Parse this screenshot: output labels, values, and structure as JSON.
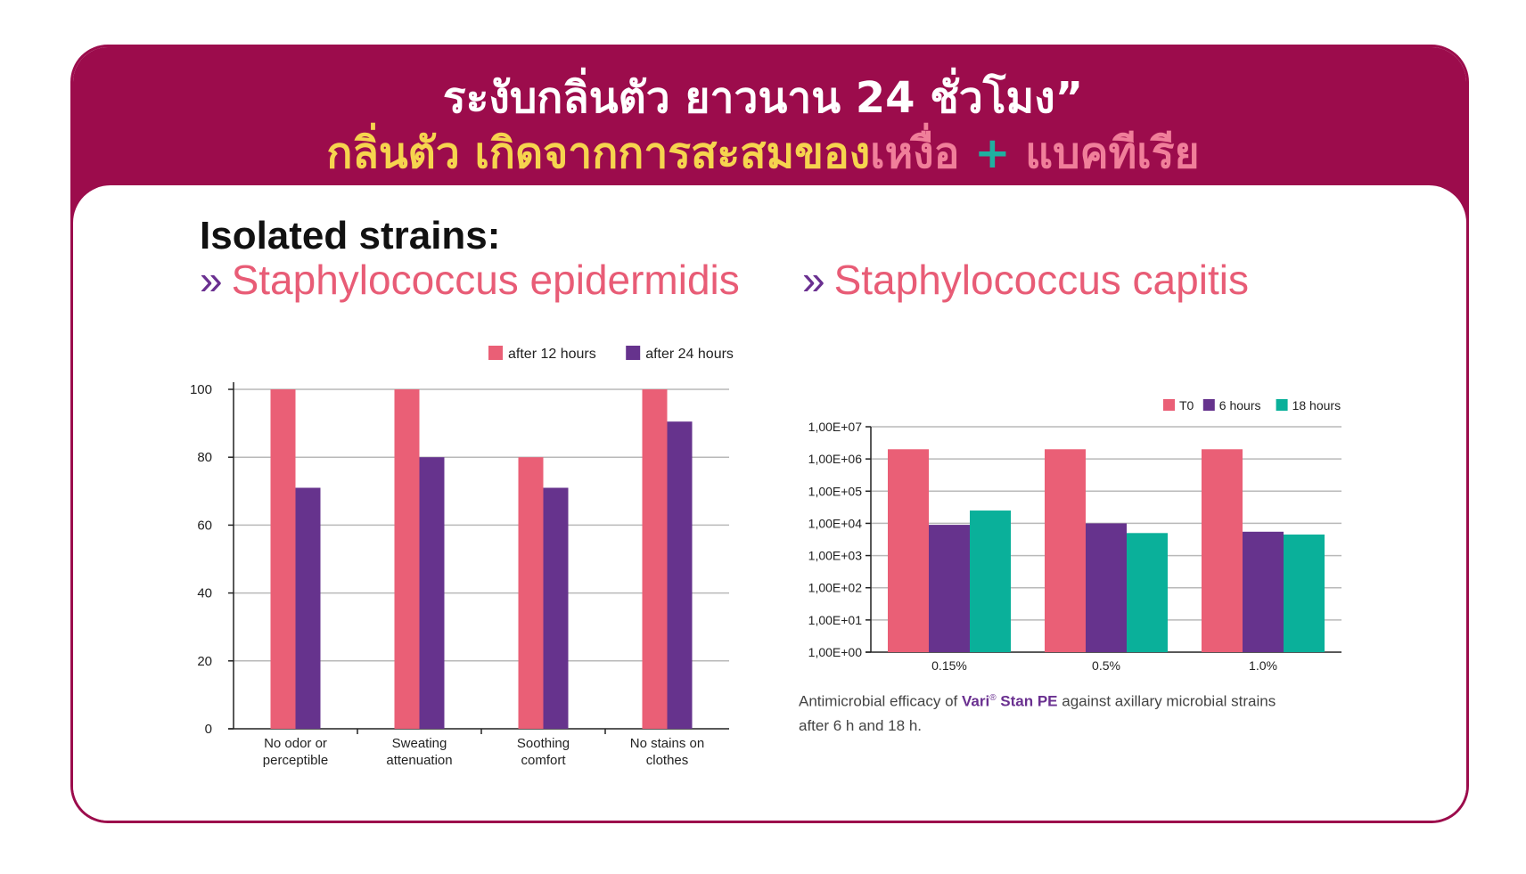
{
  "header": {
    "title_line1": "ระงับกลิ่นตัว ยาวนาน 24 ชั่วโมง”",
    "title_line2_part1": "กลิ่นตัว เกิดจากการสะสมของ",
    "title_line2_part2": "เหงื่อ",
    "title_line2_plus": "+",
    "title_line2_part3": "แบคทีเรีย"
  },
  "strains": {
    "heading": "Isolated strains:",
    "bullet": "»",
    "items": [
      "Staphylococcus epidermidis",
      "Staphylococcus capitis"
    ]
  },
  "caption": {
    "prefix": "Antimicrobial efficacy of ",
    "brand": "Vari",
    "reg": "®",
    "product": " Stan PE",
    "suffix": " against axillary microbial strains after 6 h and 18 h."
  },
  "colors": {
    "brand": "#9c0c4c",
    "pink": "#ea5f76",
    "purple": "#66338d",
    "teal": "#0ab09a"
  },
  "chart_data": [
    {
      "type": "bar",
      "title": "",
      "categories": [
        [
          "No odor or",
          "perceptible"
        ],
        [
          "Sweating",
          "attenuation"
        ],
        [
          "Soothing",
          "comfort"
        ],
        [
          "No stains on",
          "clothes"
        ]
      ],
      "series": [
        {
          "name": "after 12 hours",
          "values": [
            100,
            100,
            80,
            100
          ],
          "color": "#ea5f76"
        },
        {
          "name": "after 24 hours",
          "values": [
            71,
            80,
            71,
            90.5
          ],
          "color": "#66338d"
        }
      ],
      "yticks": [
        0,
        20,
        40,
        60,
        80,
        100
      ],
      "ylim": [
        0,
        100
      ],
      "grid": true,
      "legend": "top-right"
    },
    {
      "type": "bar",
      "title": "",
      "scale": "log",
      "categories": [
        "0.15%",
        "0.5%",
        "1.0%"
      ],
      "series": [
        {
          "name": "T0",
          "values": [
            2000000,
            2000000,
            2000000
          ],
          "color": "#ea5f76"
        },
        {
          "name": "6 hours",
          "values": [
            9000,
            10000,
            5500
          ],
          "color": "#66338d"
        },
        {
          "name": "18 hours",
          "values": [
            25000,
            5000,
            4500
          ],
          "color": "#0ab09a"
        }
      ],
      "ytick_labels": [
        "1,00E+00",
        "1,00E+01",
        "1,00E+02",
        "1,00E+03",
        "1,00E+04",
        "1,00E+05",
        "1,00E+06",
        "1,00E+07"
      ],
      "ylim": [
        1,
        10000000
      ],
      "grid": true,
      "legend": "top-right"
    }
  ]
}
